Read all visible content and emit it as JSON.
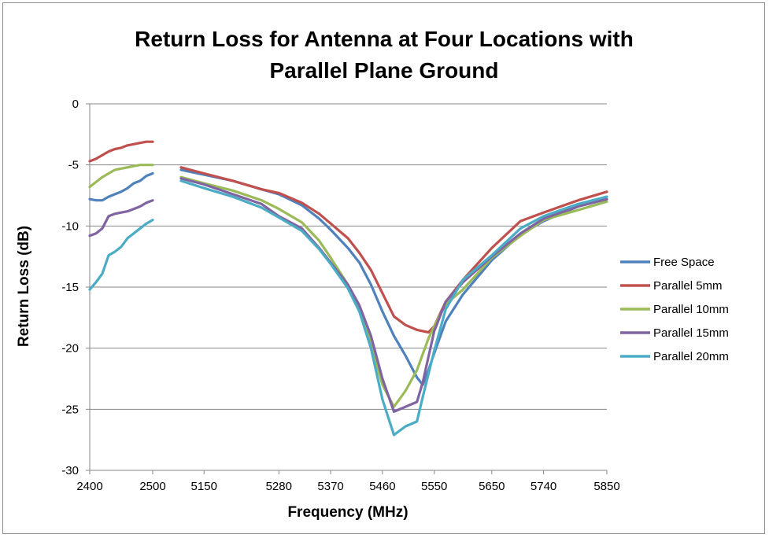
{
  "chart_data": {
    "type": "line",
    "title_lines": [
      "Return Loss for Antenna at Four Locations with",
      "Parallel Plane Ground"
    ],
    "xlabel": "Frequency  (MHz)",
    "ylabel": "Return Loss (dB)",
    "ylim": [
      -30,
      0
    ],
    "yticks": [
      0,
      -5,
      -10,
      -15,
      -20,
      -25,
      -30
    ],
    "xtick_labels": [
      "2400",
      "2500",
      "5150",
      "5280",
      "5370",
      "5460",
      "5550",
      "5650",
      "5740",
      "5850"
    ],
    "grid": true,
    "legend_position": "right",
    "segments": [
      {
        "name": "band-2.4GHz",
        "x_range": [
          2400,
          2500
        ]
      },
      {
        "name": "band-5GHz",
        "x_range": [
          5110,
          5850
        ]
      }
    ],
    "series": [
      {
        "name": "Free Space",
        "color": "#4f81bd",
        "band1": [
          [
            2400,
            -7.8
          ],
          [
            2410,
            -7.9
          ],
          [
            2420,
            -7.9
          ],
          [
            2430,
            -7.6
          ],
          [
            2440,
            -7.4
          ],
          [
            2450,
            -7.2
          ],
          [
            2460,
            -6.9
          ],
          [
            2470,
            -6.5
          ],
          [
            2480,
            -6.3
          ],
          [
            2490,
            -5.9
          ],
          [
            2500,
            -5.7
          ]
        ],
        "band2": [
          [
            5110,
            -5.4
          ],
          [
            5150,
            -5.8
          ],
          [
            5200,
            -6.3
          ],
          [
            5250,
            -7.0
          ],
          [
            5280,
            -7.4
          ],
          [
            5320,
            -8.3
          ],
          [
            5350,
            -9.4
          ],
          [
            5370,
            -10.3
          ],
          [
            5400,
            -11.8
          ],
          [
            5420,
            -13.0
          ],
          [
            5440,
            -14.8
          ],
          [
            5460,
            -17.0
          ],
          [
            5480,
            -19.0
          ],
          [
            5500,
            -20.6
          ],
          [
            5520,
            -22.4
          ],
          [
            5530,
            -23.0
          ],
          [
            5540,
            -21.8
          ],
          [
            5550,
            -20.4
          ],
          [
            5570,
            -17.8
          ],
          [
            5600,
            -15.6
          ],
          [
            5650,
            -12.8
          ],
          [
            5700,
            -10.7
          ],
          [
            5740,
            -9.6
          ],
          [
            5800,
            -8.4
          ],
          [
            5850,
            -7.8
          ]
        ]
      },
      {
        "name": "Parallel 5mm",
        "color": "#c0504d",
        "band1": [
          [
            2400,
            -4.7
          ],
          [
            2410,
            -4.5
          ],
          [
            2420,
            -4.2
          ],
          [
            2430,
            -3.9
          ],
          [
            2440,
            -3.7
          ],
          [
            2450,
            -3.6
          ],
          [
            2460,
            -3.4
          ],
          [
            2470,
            -3.3
          ],
          [
            2480,
            -3.2
          ],
          [
            2490,
            -3.1
          ],
          [
            2500,
            -3.1
          ]
        ],
        "band2": [
          [
            5110,
            -5.2
          ],
          [
            5150,
            -5.7
          ],
          [
            5200,
            -6.3
          ],
          [
            5250,
            -7.0
          ],
          [
            5280,
            -7.3
          ],
          [
            5320,
            -8.1
          ],
          [
            5350,
            -9.0
          ],
          [
            5370,
            -9.8
          ],
          [
            5400,
            -11.0
          ],
          [
            5420,
            -12.2
          ],
          [
            5440,
            -13.6
          ],
          [
            5460,
            -15.5
          ],
          [
            5480,
            -17.4
          ],
          [
            5500,
            -18.1
          ],
          [
            5520,
            -18.5
          ],
          [
            5540,
            -18.7
          ],
          [
            5550,
            -18.2
          ],
          [
            5570,
            -16.2
          ],
          [
            5600,
            -14.4
          ],
          [
            5650,
            -11.8
          ],
          [
            5700,
            -9.6
          ],
          [
            5740,
            -8.9
          ],
          [
            5800,
            -7.9
          ],
          [
            5850,
            -7.2
          ]
        ]
      },
      {
        "name": "Parallel 10mm",
        "color": "#9bbb59",
        "band1": [
          [
            2400,
            -6.8
          ],
          [
            2410,
            -6.4
          ],
          [
            2420,
            -6.0
          ],
          [
            2430,
            -5.7
          ],
          [
            2440,
            -5.4
          ],
          [
            2450,
            -5.3
          ],
          [
            2460,
            -5.2
          ],
          [
            2470,
            -5.1
          ],
          [
            2480,
            -5.0
          ],
          [
            2490,
            -5.0
          ],
          [
            2500,
            -5.0
          ]
        ],
        "band2": [
          [
            5110,
            -6.0
          ],
          [
            5150,
            -6.5
          ],
          [
            5200,
            -7.1
          ],
          [
            5250,
            -7.9
          ],
          [
            5280,
            -8.6
          ],
          [
            5320,
            -9.7
          ],
          [
            5350,
            -11.2
          ],
          [
            5370,
            -12.6
          ],
          [
            5400,
            -14.8
          ],
          [
            5420,
            -16.8
          ],
          [
            5440,
            -19.6
          ],
          [
            5460,
            -23.0
          ],
          [
            5480,
            -24.8
          ],
          [
            5500,
            -23.5
          ],
          [
            5520,
            -21.8
          ],
          [
            5540,
            -19.2
          ],
          [
            5550,
            -18.2
          ],
          [
            5570,
            -16.4
          ],
          [
            5600,
            -15.2
          ],
          [
            5650,
            -12.6
          ],
          [
            5700,
            -10.8
          ],
          [
            5740,
            -9.5
          ],
          [
            5800,
            -8.7
          ],
          [
            5850,
            -8.0
          ]
        ]
      },
      {
        "name": "Parallel 15mm",
        "color": "#8064a2",
        "band1": [
          [
            2400,
            -10.8
          ],
          [
            2410,
            -10.6
          ],
          [
            2420,
            -10.2
          ],
          [
            2430,
            -9.2
          ],
          [
            2440,
            -9.0
          ],
          [
            2450,
            -8.9
          ],
          [
            2460,
            -8.8
          ],
          [
            2470,
            -8.6
          ],
          [
            2480,
            -8.4
          ],
          [
            2490,
            -8.1
          ],
          [
            2500,
            -7.9
          ]
        ],
        "band2": [
          [
            5110,
            -6.1
          ],
          [
            5150,
            -6.6
          ],
          [
            5200,
            -7.4
          ],
          [
            5250,
            -8.2
          ],
          [
            5280,
            -9.2
          ],
          [
            5320,
            -10.2
          ],
          [
            5350,
            -11.8
          ],
          [
            5370,
            -13.0
          ],
          [
            5400,
            -14.8
          ],
          [
            5420,
            -16.5
          ],
          [
            5440,
            -19.0
          ],
          [
            5460,
            -22.5
          ],
          [
            5480,
            -25.2
          ],
          [
            5500,
            -24.8
          ],
          [
            5520,
            -24.4
          ],
          [
            5530,
            -22.8
          ],
          [
            5550,
            -18.6
          ],
          [
            5570,
            -16.2
          ],
          [
            5600,
            -14.6
          ],
          [
            5650,
            -12.5
          ],
          [
            5700,
            -10.6
          ],
          [
            5740,
            -9.4
          ],
          [
            5800,
            -8.4
          ],
          [
            5850,
            -7.8
          ]
        ]
      },
      {
        "name": "Parallel 20mm",
        "color": "#4bacc6",
        "band1": [
          [
            2400,
            -15.2
          ],
          [
            2410,
            -14.6
          ],
          [
            2420,
            -13.9
          ],
          [
            2430,
            -12.4
          ],
          [
            2440,
            -12.1
          ],
          [
            2450,
            -11.7
          ],
          [
            2460,
            -11.0
          ],
          [
            2470,
            -10.6
          ],
          [
            2480,
            -10.2
          ],
          [
            2490,
            -9.8
          ],
          [
            2500,
            -9.5
          ]
        ],
        "band2": [
          [
            5110,
            -6.3
          ],
          [
            5150,
            -6.9
          ],
          [
            5200,
            -7.6
          ],
          [
            5250,
            -8.5
          ],
          [
            5280,
            -9.3
          ],
          [
            5320,
            -10.4
          ],
          [
            5350,
            -11.9
          ],
          [
            5370,
            -13.1
          ],
          [
            5400,
            -15.1
          ],
          [
            5420,
            -17.0
          ],
          [
            5440,
            -20.0
          ],
          [
            5460,
            -24.2
          ],
          [
            5480,
            -27.1
          ],
          [
            5500,
            -26.4
          ],
          [
            5520,
            -26.0
          ],
          [
            5530,
            -24.0
          ],
          [
            5550,
            -20.2
          ],
          [
            5570,
            -16.8
          ],
          [
            5600,
            -14.4
          ],
          [
            5650,
            -12.4
          ],
          [
            5700,
            -10.2
          ],
          [
            5740,
            -9.2
          ],
          [
            5800,
            -8.2
          ],
          [
            5850,
            -7.6
          ]
        ]
      }
    ]
  }
}
